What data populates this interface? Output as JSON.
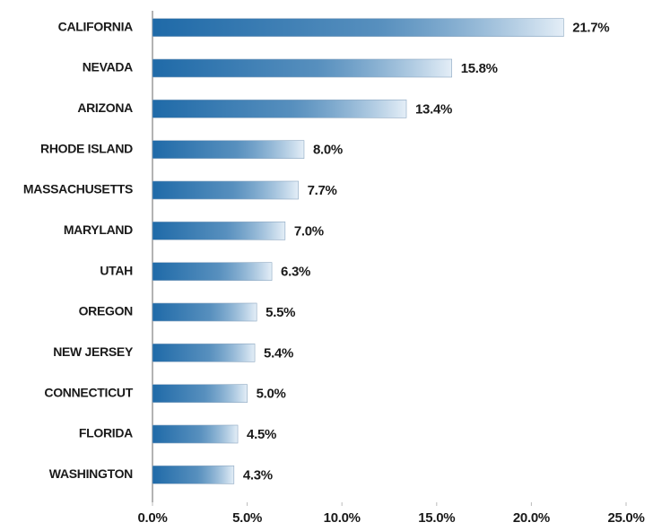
{
  "chart_data": {
    "type": "bar",
    "orientation": "horizontal",
    "categories": [
      "CALIFORNIA",
      "NEVADA",
      "ARIZONA",
      "RHODE ISLAND",
      "MASSACHUSETTS",
      "MARYLAND",
      "UTAH",
      "OREGON",
      "NEW JERSEY",
      "CONNECTICUT",
      "FLORIDA",
      "WASHINGTON"
    ],
    "values": [
      21.7,
      15.8,
      13.4,
      8.0,
      7.7,
      7.0,
      6.3,
      5.5,
      5.4,
      5.0,
      4.5,
      4.3
    ],
    "value_labels": [
      "21.7%",
      "15.8%",
      "13.4%",
      "8.0%",
      "7.7%",
      "7.0%",
      "6.3%",
      "5.5%",
      "5.4%",
      "5.0%",
      "4.5%",
      "4.3%"
    ],
    "color": "#1f6aa8",
    "xlim": [
      0,
      25
    ],
    "xticks": [
      {
        "value": 0,
        "label": "0.0%"
      },
      {
        "value": 5,
        "label": "5.0%"
      },
      {
        "value": 10,
        "label": "10.0%"
      },
      {
        "value": 15,
        "label": "15.0%"
      },
      {
        "value": 20,
        "label": "20.0%"
      },
      {
        "value": 25,
        "label": "25.0%"
      }
    ],
    "grid": false
  }
}
